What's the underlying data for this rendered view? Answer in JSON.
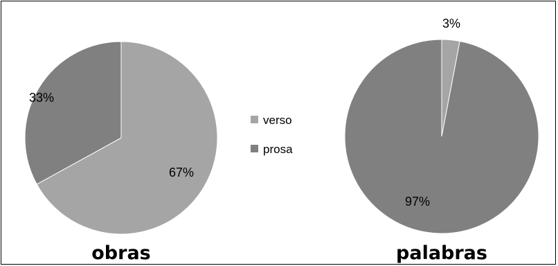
{
  "chart_data": [
    {
      "type": "pie",
      "title": "obras",
      "categories": [
        "verso",
        "prosa"
      ],
      "values": [
        67,
        33
      ],
      "labels": [
        "67%",
        "33%"
      ],
      "colors": [
        "#A5A5A5",
        "#808080"
      ],
      "start": "top, clockwise"
    },
    {
      "type": "pie",
      "title": "palabras",
      "categories": [
        "verso",
        "prosa"
      ],
      "values": [
        3,
        97
      ],
      "labels": [
        "3%",
        "97%"
      ],
      "colors": [
        "#A5A5A5",
        "#808080"
      ],
      "start": "top, clockwise"
    }
  ],
  "legend": {
    "placement": "center",
    "items": [
      {
        "label": "verso",
        "color": "#A5A5A5"
      },
      {
        "label": "prosa",
        "color": "#808080"
      }
    ]
  }
}
